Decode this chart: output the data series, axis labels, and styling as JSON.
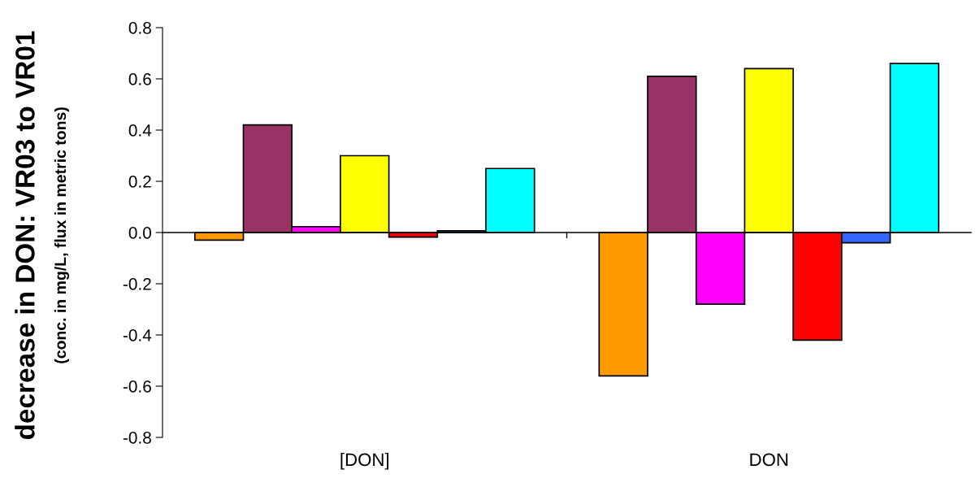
{
  "chart_data": {
    "type": "bar",
    "ylabel": "decrease in DON: VR03 to VR01",
    "subtitle": "(conc. in mg/L, flux in metric tons)",
    "categories": [
      "[DON]",
      "DON"
    ],
    "series": [
      {
        "color": "#ff9900",
        "values": [
          -0.03,
          -0.56
        ]
      },
      {
        "color": "#993366",
        "values": [
          0.42,
          0.61
        ]
      },
      {
        "color": "#ff00ff",
        "values": [
          0.023,
          -0.28
        ]
      },
      {
        "color": "#ffff00",
        "values": [
          0.3,
          0.64
        ]
      },
      {
        "color": "#ff0000",
        "values": [
          -0.018,
          -0.42
        ]
      },
      {
        "color": "#3366ff",
        "values": [
          0.007,
          -0.04
        ]
      },
      {
        "color": "#00ffff",
        "values": [
          0.25,
          0.66
        ]
      }
    ],
    "ylim": [
      -0.8,
      0.8
    ],
    "yticks": [
      {
        "value": -0.8,
        "label": "-0.8"
      },
      {
        "value": -0.6,
        "label": "-0.6"
      },
      {
        "value": -0.4,
        "label": "-0.4"
      },
      {
        "value": -0.2,
        "label": "-0.2"
      },
      {
        "value": 0,
        "label": "0.0"
      },
      {
        "value": 0.2,
        "label": "0.2"
      },
      {
        "value": 0.4,
        "label": "0.4"
      },
      {
        "value": 0.6,
        "label": "0.6"
      },
      {
        "value": 0.8,
        "label": "0.8"
      }
    ],
    "legend": false
  }
}
